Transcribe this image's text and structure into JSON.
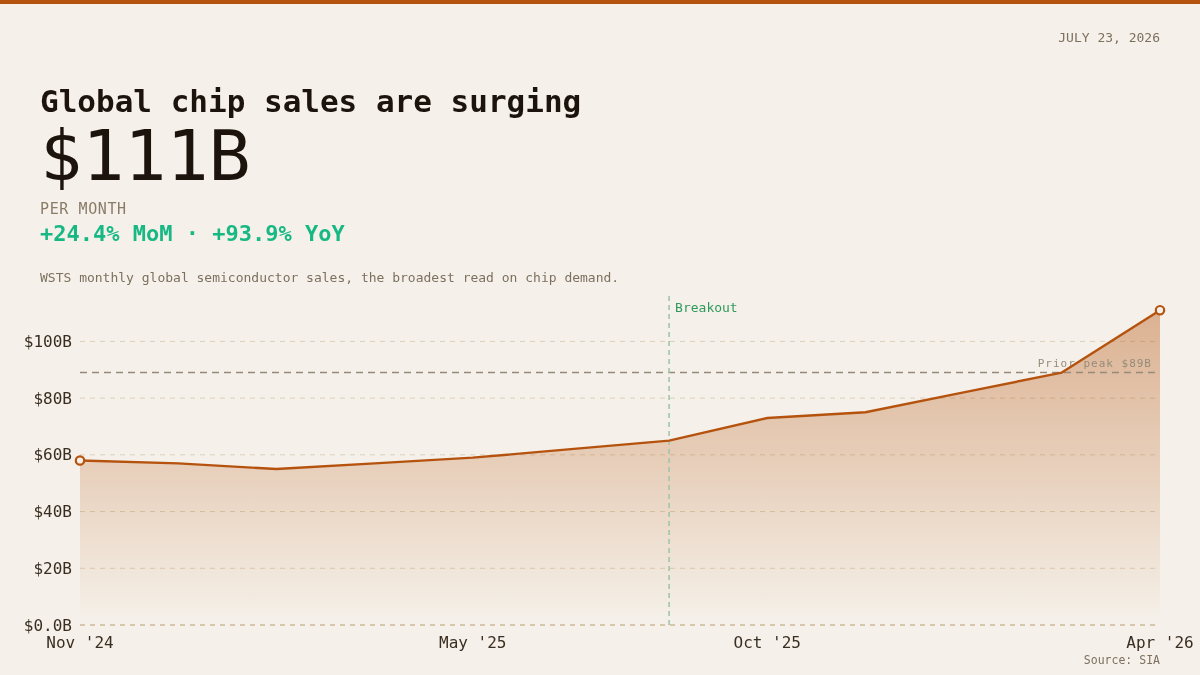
{
  "chart_data": {
    "type": "area",
    "title": "Global chip sales are surging",
    "subtitle": "WSTS monthly global semiconductor sales, the broadest read on chip demand.",
    "annotations": [
      "$111B",
      "PER MONTH",
      "+24.4% MoM · +93.9% YoY",
      "JULY 23, 2026",
      "Source: SIA",
      "Breakout"
    ],
    "categories": [
      "Nov '24",
      null,
      null,
      null,
      "May '25",
      null,
      null,
      "Oct '25",
      null,
      null,
      null,
      "Apr '26"
    ],
    "series": [
      {
        "color": "#b5530e",
        "values": [
          58,
          57,
          55,
          57,
          59,
          62,
          65,
          73,
          75,
          82,
          89,
          111
        ]
      },
      {
        "type": "scatter",
        "color": "#b5530e",
        "marker": "circle",
        "x": [
          "Nov '24",
          "Apr '26"
        ],
        "values": [
          58,
          111
        ]
      }
    ],
    "ylim": [
      0,
      116
    ],
    "yticks": [
      {
        "value": 0,
        "label": "$0.0B"
      },
      {
        "value": 20,
        "label": "$20B"
      },
      {
        "value": 40,
        "label": "$40B"
      },
      {
        "value": 60,
        "label": "$60B"
      },
      {
        "value": 80,
        "label": "$80B"
      },
      {
        "value": 100,
        "label": "$100B"
      }
    ],
    "grid": "y",
    "ref_lines": [
      {
        "axis": "y",
        "value": 89,
        "label": "Prior peak $89B",
        "color": "#968b7b",
        "line_style": "dashed"
      }
    ]
  }
}
